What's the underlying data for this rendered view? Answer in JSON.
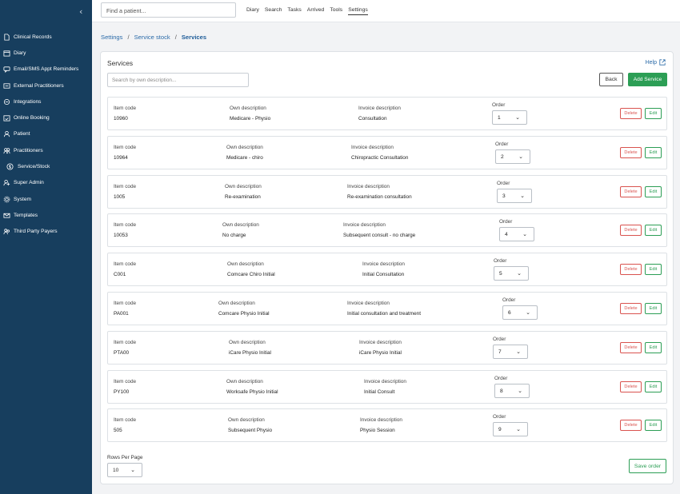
{
  "sidebar": {
    "collapse_icon": "chevron-left-icon",
    "items": [
      {
        "label": "Clinical Records",
        "icon": "file-icon"
      },
      {
        "label": "Diary",
        "icon": "calendar-icon"
      },
      {
        "label": "Email/SMS Appt Reminders",
        "icon": "message-icon"
      },
      {
        "label": "External Practitioners",
        "icon": "external-icon"
      },
      {
        "label": "Integrations",
        "icon": "integrations-icon"
      },
      {
        "label": "Online Booking",
        "icon": "booking-icon"
      },
      {
        "label": "Patient",
        "icon": "user-icon"
      },
      {
        "label": "Practitioners",
        "icon": "users-icon"
      },
      {
        "label": "Service/Stock",
        "icon": "dollar-icon"
      },
      {
        "label": "Super Admin",
        "icon": "admin-icon"
      },
      {
        "label": "System",
        "icon": "gear-icon"
      },
      {
        "label": "Templates",
        "icon": "envelope-icon"
      },
      {
        "label": "Third Party Payers",
        "icon": "payers-icon"
      }
    ]
  },
  "topbar": {
    "search_placeholder": "Find a patient...",
    "menu": [
      "Diary",
      "Search",
      "Tasks",
      "Arrived",
      "Tools",
      "Settings"
    ],
    "active": "Settings"
  },
  "breadcrumb": {
    "items": [
      "Settings",
      "Service stock"
    ],
    "separator": "/",
    "current": "Services"
  },
  "page": {
    "title": "Services",
    "help_label": "Help",
    "search_placeholder": "Search by own description...",
    "back_label": "Back",
    "add_label": "Add Service",
    "col_item_code": "Item code",
    "col_own_description": "Own description",
    "col_invoice_description": "Invoice description",
    "col_order": "Order",
    "delete_label": "Delete",
    "edit_label": "Edit",
    "rows_per_page_label": "Rows Per Page",
    "rows_per_page_value": "10",
    "save_order_label": "Save order"
  },
  "services": [
    {
      "item_code": "10960",
      "own": "Medicare - Physio",
      "invoice": "Consultation",
      "order": "1"
    },
    {
      "item_code": "10964",
      "own": "Medicare - chiro",
      "invoice": "Chiropractic Consultation",
      "order": "2"
    },
    {
      "item_code": "1005",
      "own": "Re-examination",
      "invoice": "Re-examination consultation",
      "order": "3"
    },
    {
      "item_code": "10053",
      "own": "No charge",
      "invoice": "Subsequent consult - no charge",
      "order": "4"
    },
    {
      "item_code": "C001",
      "own": "Comcare Chiro Initial",
      "invoice": "Initial Consultation",
      "order": "5"
    },
    {
      "item_code": "PA001",
      "own": "Comcare Physio Initial",
      "invoice": "Initial consultation and treatment",
      "order": "6"
    },
    {
      "item_code": "PTA00",
      "own": "iCare Physio Initial",
      "invoice": "iCare Physio Initial",
      "order": "7"
    },
    {
      "item_code": "PY100",
      "own": "Worksafe Physio Initial",
      "invoice": "Initial Consult",
      "order": "8"
    },
    {
      "item_code": "505",
      "own": "Subsequent Physio",
      "invoice": "Physio Session",
      "order": "9"
    }
  ],
  "colors": {
    "sidebar": "#173e5e",
    "accent": "#2c9e55",
    "danger": "#d9534f",
    "link": "#2a6aa8"
  }
}
